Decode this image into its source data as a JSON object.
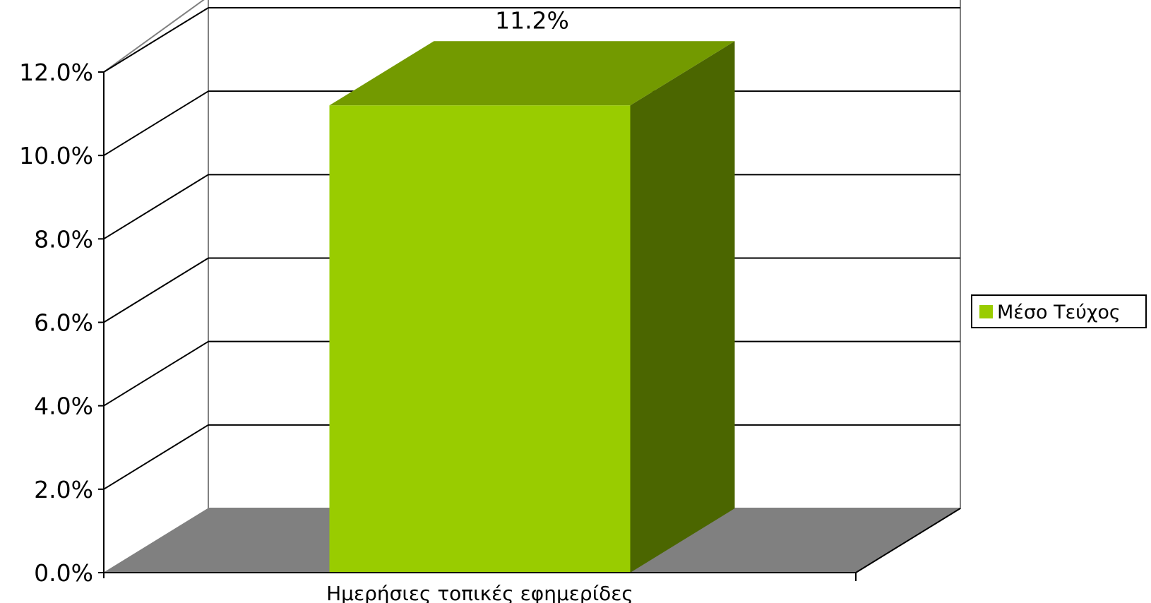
{
  "chart_data": {
    "type": "bar",
    "three_d": true,
    "categories": [
      "Ημερήσιες τοπικές εφημερίδες"
    ],
    "series": [
      {
        "name": "Μέσο Τεύχος",
        "values": [
          11.2
        ]
      }
    ],
    "value_labels": [
      "11.2%"
    ],
    "ylim": [
      0,
      12
    ],
    "yticks": [
      "0.0%",
      "2.0%",
      "4.0%",
      "6.0%",
      "8.0%",
      "10.0%",
      "12.0%"
    ],
    "grid": true,
    "legend_position": "right",
    "colors": {
      "bar_front": "#99cc00",
      "bar_top": "#739a00",
      "bar_side": "#4b6600",
      "floor": "#808080",
      "gridline": "#000000"
    }
  }
}
